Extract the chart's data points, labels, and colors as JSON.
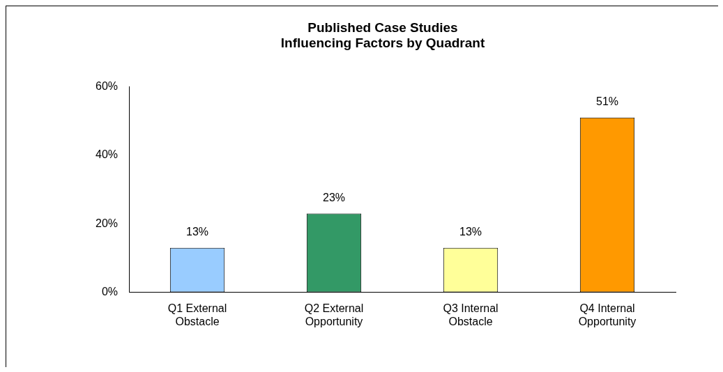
{
  "chart_data": {
    "type": "bar",
    "title": [
      "Published Case Studies",
      "Influencing Factors by Quadrant"
    ],
    "categories": [
      "Q1 External Obstacle",
      "Q2 External Opportunity",
      "Q3 Internal Obstacle",
      "Q4 Internal Opportunity"
    ],
    "values": [
      13,
      23,
      13,
      51
    ],
    "colors": [
      "#99ccff",
      "#339966",
      "#ffff99",
      "#ff9900"
    ],
    "value_labels": [
      "13%",
      "23%",
      "13%",
      "51%"
    ],
    "ylim": [
      0,
      60
    ],
    "yticks": [
      {
        "value": 0,
        "label": "0%"
      },
      {
        "value": 20,
        "label": "20%"
      },
      {
        "value": 40,
        "label": "40%"
      },
      {
        "value": 60,
        "label": "60%"
      }
    ],
    "grid": false,
    "legend": false
  }
}
